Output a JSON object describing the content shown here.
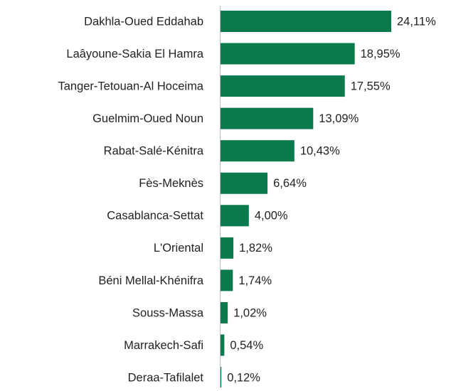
{
  "chart_data": {
    "type": "bar",
    "orientation": "horizontal",
    "color": "#0b7a4d",
    "categories": [
      "Dakhla-Oued Eddahab",
      "Laâyoune-Sakia El Hamra",
      "Tanger-Tetouan-Al Hoceima",
      "Guelmim-Oued Noun",
      "Rabat-Salé-Kénitra",
      "Fès-Meknès",
      "Casablanca-Settat",
      "L'Oriental",
      "Béni Mellal-Khénifra",
      "Souss-Massa",
      "Marrakech-Safi",
      "Deraa-Tafilalet"
    ],
    "values": [
      24.11,
      18.95,
      17.55,
      13.09,
      10.43,
      6.64,
      4.0,
      1.82,
      1.74,
      1.02,
      0.54,
      0.12
    ],
    "value_labels": [
      "24,11%",
      "18,95%",
      "17,55%",
      "13,09%",
      "10,43%",
      "6,64%",
      "4,00%",
      "1,82%",
      "1,74%",
      "1,02%",
      "0,54%",
      "0,12%"
    ]
  }
}
